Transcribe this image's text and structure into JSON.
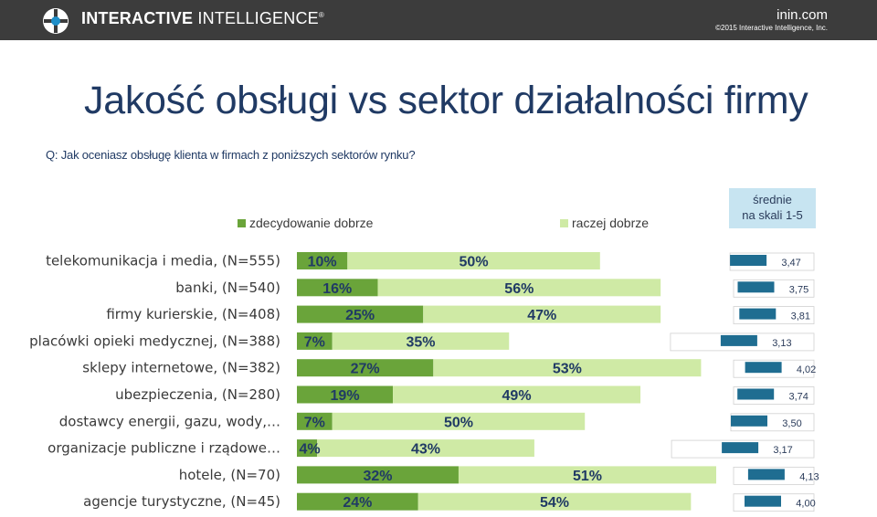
{
  "header": {
    "brand_bold": "INTERACTIVE",
    "brand_light": "INTELLIGENCE",
    "brand_mark": "®",
    "site": "inin.com",
    "copyright": "©2015 Interactive Intelligence, Inc."
  },
  "title": "Jakość obsługi vs sektor działalności firmy",
  "question": "Q: Jak oceniasz obsługę klienta w firmach z poniższych sektorów rynku?",
  "averages_box": {
    "line1": "średnie",
    "line2": "na skali 1-5"
  },
  "colors": {
    "dark_green": "#6aa43a",
    "light_green": "#cfeaa5",
    "avg_bar": "#1f6d91",
    "title": "#203a64",
    "header_bg": "#3c3c3c"
  },
  "chart_data": {
    "type": "bar",
    "orientation": "horizontal",
    "stacked": true,
    "legend_position": "top",
    "categories": [
      "telekomunikacja i media, (N=555)",
      "banki, (N=540)",
      "firmy kurierskie, (N=408)",
      "placówki opieki medycznej, (N=388)",
      "sklepy internetowe, (N=382)",
      "ubezpieczenia, (N=280)",
      "dostawcy energii, gazu, wody,…",
      "organizacje publiczne i rządowe…",
      "hotele, (N=70)",
      "agencje turystyczne, (N=45)"
    ],
    "series": [
      {
        "name": "zdecydowanie dobrze",
        "color": "#6aa43a",
        "values": [
          10,
          16,
          25,
          7,
          27,
          19,
          7,
          4,
          32,
          24
        ],
        "labels": [
          "10%",
          "16%",
          "25%",
          "7%",
          "27%",
          "19%",
          "7%",
          "4%",
          "32%",
          "24%"
        ]
      },
      {
        "name": "raczej dobrze",
        "color": "#cfeaa5",
        "values": [
          50,
          56,
          47,
          35,
          53,
          49,
          50,
          43,
          51,
          54
        ],
        "labels": [
          "50%",
          "56%",
          "47%",
          "35%",
          "53%",
          "49%",
          "50%",
          "43%",
          "51%",
          "54%"
        ]
      }
    ],
    "averages": {
      "scale": [
        1,
        5
      ],
      "values": [
        3.47,
        3.75,
        3.81,
        3.13,
        4.02,
        3.74,
        3.5,
        3.17,
        4.13,
        4.0
      ],
      "labels": [
        "3,47",
        "3,75",
        "3,81",
        "3,13",
        "4,02",
        "3,74",
        "3,50",
        "3,17",
        "4,13",
        "4,00"
      ]
    }
  }
}
